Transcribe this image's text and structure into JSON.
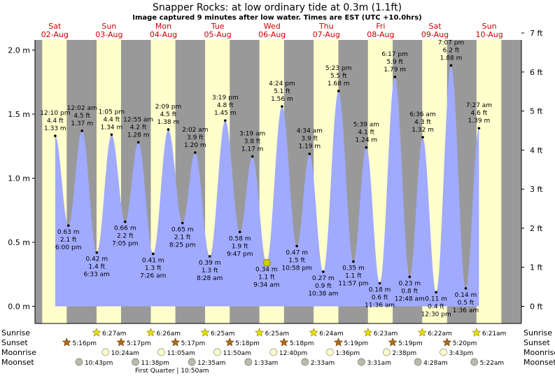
{
  "title": "Snapper Rocks: at low  ordinary tide at 0.3m (1.1ft)",
  "subtitle": "Image captured 9 minutes after low water. Times are EST (UTC +10.0hrs)",
  "colors": {
    "day_band": "#ffffcc",
    "night_band": "#999999",
    "water": "#a0aaff",
    "day_label": "#cc0000",
    "current_marker": "#cccc00"
  },
  "days": [
    {
      "dow": "Sat",
      "date": "02-Aug"
    },
    {
      "dow": "Sun",
      "date": "03-Aug"
    },
    {
      "dow": "Mon",
      "date": "04-Aug"
    },
    {
      "dow": "Tue",
      "date": "05-Aug"
    },
    {
      "dow": "Wed",
      "date": "06-Aug"
    },
    {
      "dow": "Thu",
      "date": "07-Aug"
    },
    {
      "dow": "Fri",
      "date": "08-Aug"
    },
    {
      "dow": "Sat",
      "date": "09-Aug"
    },
    {
      "dow": "Sun",
      "date": "10-Aug"
    }
  ],
  "chart_data": {
    "type": "area",
    "y_left_ticks": [
      "0.0 m",
      "0.5 m",
      "1.0 m",
      "1.5 m",
      "2.0 m"
    ],
    "y_right_ticks": [
      "0 ft",
      "1 ft",
      "2 ft",
      "3 ft",
      "4 ft",
      "5 ft",
      "6 ft",
      "7 ft"
    ],
    "ylim_m": [
      -0.12,
      2.22
    ],
    "current": {
      "height_m": 0.34
    },
    "tides": [
      {
        "type": "high",
        "day": 0,
        "time": "12:10 pm",
        "m": "1.33 m",
        "ft": "4.4 ft",
        "h": 1.33
      },
      {
        "type": "low",
        "day": 0,
        "time": "6:00 pm",
        "m": "0.63 m",
        "ft": "2.1 ft",
        "h": 0.63
      },
      {
        "type": "high",
        "day": 1,
        "time": "12:02 am",
        "m": "1.37 m",
        "ft": "4.5 ft",
        "h": 1.37
      },
      {
        "type": "low",
        "day": 1,
        "time": "6:33 am",
        "m": "0.42 m",
        "ft": "1.4 ft",
        "h": 0.42
      },
      {
        "type": "high",
        "day": 1,
        "time": "1:05 pm",
        "m": "1.34 m",
        "ft": "4.4 ft",
        "h": 1.34
      },
      {
        "type": "low",
        "day": 1,
        "time": "7:05 pm",
        "m": "0.66 m",
        "ft": "2.2 ft",
        "h": 0.66
      },
      {
        "type": "high",
        "day": 2,
        "time": "12:55 am",
        "m": "1.28 m",
        "ft": "4.2 ft",
        "h": 1.28
      },
      {
        "type": "low",
        "day": 2,
        "time": "7:26 am",
        "m": "0.41 m",
        "ft": "1.3 ft",
        "h": 0.41
      },
      {
        "type": "high",
        "day": 2,
        "time": "2:09 pm",
        "m": "1.38 m",
        "ft": "4.5 ft",
        "h": 1.38
      },
      {
        "type": "low",
        "day": 2,
        "time": "8:25 pm",
        "m": "0.65 m",
        "ft": "2.1 ft",
        "h": 0.65
      },
      {
        "type": "high",
        "day": 3,
        "time": "2:02 am",
        "m": "1.20 m",
        "ft": "3.9 ft",
        "h": 1.2
      },
      {
        "type": "low",
        "day": 3,
        "time": "8:28 am",
        "m": "0.39 m",
        "ft": "1.3 ft",
        "h": 0.39
      },
      {
        "type": "high",
        "day": 3,
        "time": "3:19 pm",
        "m": "1.45 m",
        "ft": "4.8 ft",
        "h": 1.45
      },
      {
        "type": "low",
        "day": 3,
        "time": "9:47 pm",
        "m": "0.58 m",
        "ft": "1.9 ft",
        "h": 0.58
      },
      {
        "type": "high",
        "day": 4,
        "time": "3:19 am",
        "m": "1.17 m",
        "ft": "3.8 ft",
        "h": 1.17
      },
      {
        "type": "low",
        "day": 4,
        "time": "9:34 am",
        "m": "0.34 m",
        "ft": "1.1 ft",
        "h": 0.34
      },
      {
        "type": "high",
        "day": 4,
        "time": "4:24 pm",
        "m": "1.56 m",
        "ft": "5.1 ft",
        "h": 1.56
      },
      {
        "type": "low",
        "day": 4,
        "time": "10:58 pm",
        "m": "0.47 m",
        "ft": "1.5 ft",
        "h": 0.47
      },
      {
        "type": "high",
        "day": 5,
        "time": "4:34 am",
        "m": "1.19 m",
        "ft": "3.9 ft",
        "h": 1.19
      },
      {
        "type": "low",
        "day": 5,
        "time": "10:38 am",
        "m": "0.27 m",
        "ft": "0.9 ft",
        "h": 0.27
      },
      {
        "type": "high",
        "day": 5,
        "time": "5:23 pm",
        "m": "1.68 m",
        "ft": "5.5 ft",
        "h": 1.68
      },
      {
        "type": "low",
        "day": 5,
        "time": "11:57 pm",
        "m": "0.35 m",
        "ft": "1.1 ft",
        "h": 0.35
      },
      {
        "type": "high",
        "day": 6,
        "time": "5:39 am",
        "m": "1.24 m",
        "ft": "4.1 ft",
        "h": 1.24
      },
      {
        "type": "low",
        "day": 6,
        "time": "11:36 am",
        "m": "0.18 m",
        "ft": "0.6 ft",
        "h": 0.18
      },
      {
        "type": "high",
        "day": 6,
        "time": "6:17 pm",
        "m": "1.79 m",
        "ft": "5.9 ft",
        "h": 1.79
      },
      {
        "type": "low",
        "day": 7,
        "time": "12:48 am",
        "m": "0.23 m",
        "ft": "0.8 ft",
        "h": 0.23
      },
      {
        "type": "high",
        "day": 7,
        "time": "6:36 am",
        "m": "1.32 m",
        "ft": "4.3 ft",
        "h": 1.32
      },
      {
        "type": "low",
        "day": 7,
        "time": "12:30 pm",
        "m": "0.11 m",
        "ft": "0.4 ft",
        "h": 0.11
      },
      {
        "type": "high",
        "day": 7,
        "time": "7:07 pm",
        "m": "1.88 m",
        "ft": "6.2 ft",
        "h": 1.88
      },
      {
        "type": "low",
        "day": 8,
        "time": "1:36 am",
        "m": "0.14 m",
        "ft": "0.5 ft",
        "h": 0.14
      },
      {
        "type": "high",
        "day": 8,
        "time": "7:27 am",
        "m": "1.39 m",
        "ft": "4.6 ft",
        "h": 1.39
      }
    ]
  },
  "astro": {
    "row_labels": {
      "sunrise": "Sunrise",
      "sunset": "Sunset",
      "moonrise": "Moonrise",
      "moonset": "Moonset"
    },
    "sunrise": [
      {
        "day": 1,
        "time": "6:27am"
      },
      {
        "day": 2,
        "time": "6:26am"
      },
      {
        "day": 3,
        "time": "6:25am"
      },
      {
        "day": 4,
        "time": "6:25am"
      },
      {
        "day": 5,
        "time": "6:24am"
      },
      {
        "day": 6,
        "time": "6:23am"
      },
      {
        "day": 7,
        "time": "6:22am"
      },
      {
        "day": 8,
        "time": "6:21am"
      }
    ],
    "sunset": [
      {
        "day": 0,
        "time": "5:16pm"
      },
      {
        "day": 1,
        "time": "5:17pm"
      },
      {
        "day": 2,
        "time": "5:17pm"
      },
      {
        "day": 3,
        "time": "5:18pm"
      },
      {
        "day": 4,
        "time": "5:18pm"
      },
      {
        "day": 5,
        "time": "5:19pm"
      },
      {
        "day": 6,
        "time": "5:19pm"
      },
      {
        "day": 7,
        "time": "5:20pm"
      }
    ],
    "moonrise": [
      {
        "day": 1,
        "time": "10:24am"
      },
      {
        "day": 2,
        "time": "11:05am"
      },
      {
        "day": 3,
        "time": "11:50am"
      },
      {
        "day": 4,
        "time": "12:40pm"
      },
      {
        "day": 5,
        "time": "1:36pm"
      },
      {
        "day": 6,
        "time": "2:38pm"
      },
      {
        "day": 7,
        "time": "3:43pm"
      }
    ],
    "moonset": [
      {
        "day": 0,
        "time": "10:43pm"
      },
      {
        "day": 1,
        "time": "11:38pm"
      },
      {
        "day": 3,
        "time": "12:35am"
      },
      {
        "day": 4,
        "time": "1:33am"
      },
      {
        "day": 5,
        "time": "2:33am"
      },
      {
        "day": 6,
        "time": "3:31am"
      },
      {
        "day": 7,
        "time": "4:28am"
      },
      {
        "day": 8,
        "time": "5:22am"
      }
    ],
    "moon_phase_note": "First Quarter | 10:50am"
  }
}
